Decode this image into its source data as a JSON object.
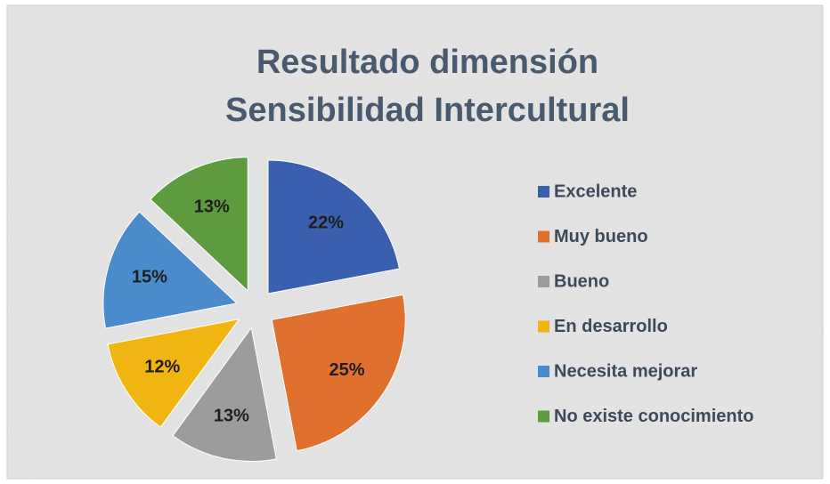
{
  "chart_data": {
    "type": "pie",
    "title": [
      "Resultado dimensión",
      "Sensibilidad Intercultural"
    ],
    "categories": [
      "Excelente",
      "Muy bueno",
      "Bueno",
      "En desarrollo",
      "Necesita mejorar",
      "No existe conocimiento"
    ],
    "values": [
      22,
      25,
      13,
      12,
      15,
      13
    ],
    "value_labels": [
      "22%",
      "25%",
      "13%",
      "12%",
      "15%",
      "13%"
    ],
    "colors": [
      "#3a5fae",
      "#e0702e",
      "#9c9c9c",
      "#f0b510",
      "#4a8bcb",
      "#5e9a3e"
    ],
    "legend": "right"
  }
}
